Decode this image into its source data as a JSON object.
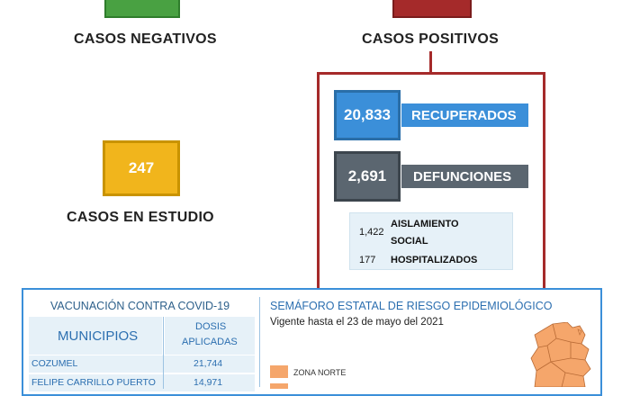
{
  "negativos": {
    "label": "CASOS NEGATIVOS",
    "color": "#49a142"
  },
  "positivos": {
    "label": "CASOS POSITIVOS",
    "color": "#a52a2a"
  },
  "estudio": {
    "value": "247",
    "label": "CASOS EN ESTUDIO",
    "color": "#f1b51c"
  },
  "recuperados": {
    "value": "20,833",
    "label": "RECUPERADOS",
    "color": "#3b8fd9"
  },
  "defunciones": {
    "value": "2,691",
    "label": "DEFUNCIONES",
    "color": "#5b6670"
  },
  "aislamiento": {
    "value": "1,422",
    "label_line1": "AISLAMIENTO",
    "label_line2": "SOCIAL"
  },
  "hospitalizados": {
    "value": "177",
    "label": "HOSPITALIZADOS"
  },
  "vacunacion": {
    "title": "VACUNACIÓN CONTRA COVID-19",
    "col_municipios": "MUNICIPIOS",
    "col_dosis_line1": "DOSIS",
    "col_dosis_line2": "APLICADAS",
    "rows": [
      {
        "municipio": "COZUMEL",
        "dosis": "21,744"
      },
      {
        "municipio": "FELIPE CARRILLO PUERTO",
        "dosis": "14,971"
      }
    ]
  },
  "semaforo": {
    "title": "SEMÁFORO ESTATAL DE RIESGO EPIDEMIOLÓGICO",
    "vigencia": "Vigente hasta el 23 de mayo del 2021",
    "legend_zona_norte": "ZONA NORTE",
    "color_naranja": "#f5a66b"
  }
}
